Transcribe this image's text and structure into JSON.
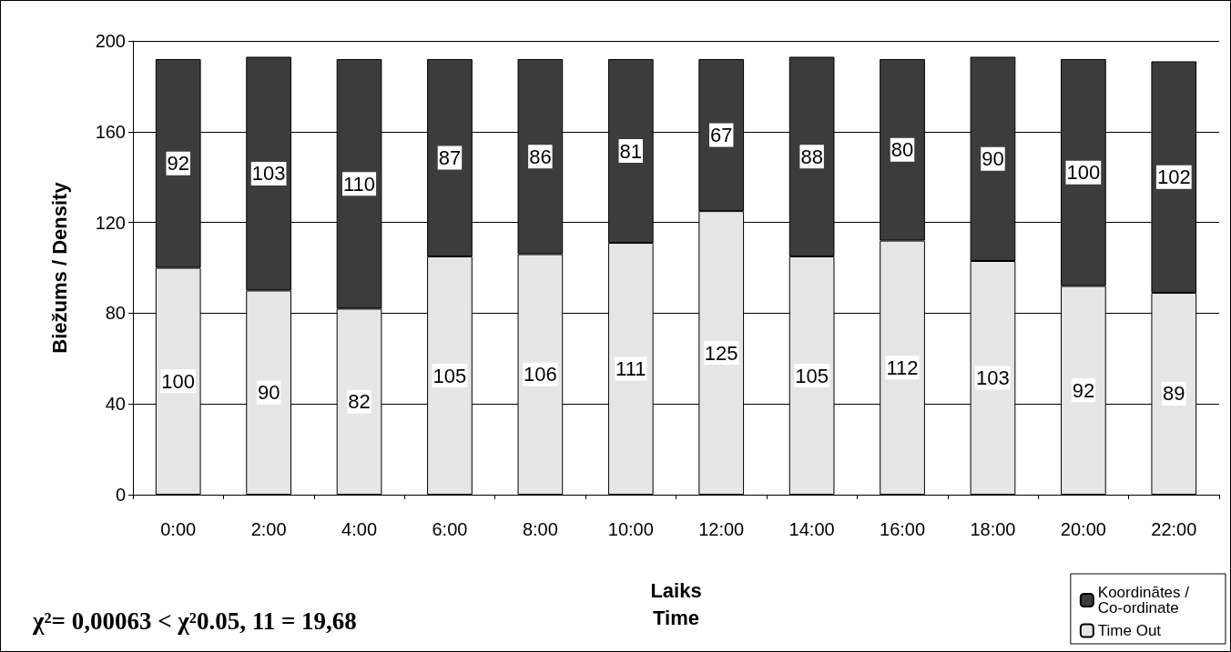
{
  "chart_data": {
    "type": "bar",
    "stacked": true,
    "xlabel": "Laiks\nTime",
    "ylabel": "Biežums / Density",
    "categories": [
      "0:00",
      "2:00",
      "4:00",
      "6:00",
      "8:00",
      "10:00",
      "12:00",
      "14:00",
      "16:00",
      "18:00",
      "20:00",
      "22:00"
    ],
    "series": [
      {
        "name": "Time Out",
        "color": "#e6e6e6",
        "values": [
          100,
          90,
          82,
          105,
          106,
          111,
          125,
          105,
          112,
          103,
          92,
          89
        ]
      },
      {
        "name": "Koordinātes /Co-ordinate",
        "color": "#3c3c3c",
        "values": [
          92,
          103,
          110,
          87,
          86,
          81,
          67,
          88,
          80,
          90,
          100,
          102
        ]
      }
    ],
    "ylim": [
      0,
      200
    ],
    "yticks": [
      0,
      40,
      80,
      120,
      160,
      200
    ],
    "grid": "y",
    "legend": "bottom right",
    "data_labels": true,
    "annotations": [
      "χ²= 0,00063 < χ²0.05, 11 = 19,68"
    ]
  }
}
